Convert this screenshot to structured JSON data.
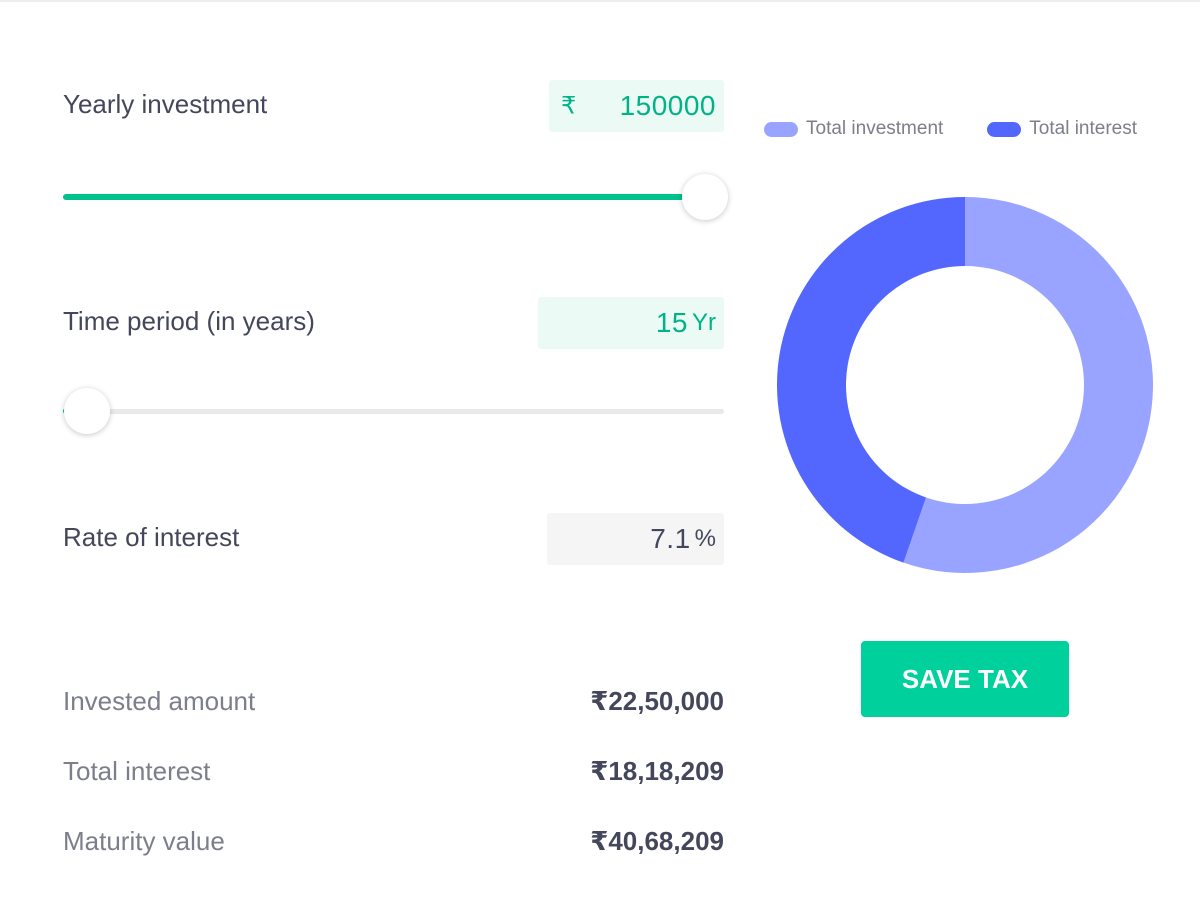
{
  "inputs": {
    "yearly_investment": {
      "label": "Yearly investment",
      "currency": "₹",
      "value": "150000",
      "slider_fraction": 0.972
    },
    "time_period": {
      "label": "Time period (in years)",
      "value": "15",
      "unit": "Yr",
      "slider_fraction": 0.036
    },
    "rate_of_interest": {
      "label": "Rate of interest",
      "value": "7.1",
      "unit": "%"
    }
  },
  "results": {
    "invested_amount": {
      "label": "Invested amount",
      "value": "₹22,50,000"
    },
    "total_interest": {
      "label": "Total interest",
      "value": "₹18,18,209"
    },
    "maturity_value": {
      "label": "Maturity value",
      "value": "₹40,68,209"
    }
  },
  "chart_data": {
    "type": "pie",
    "style": "donut",
    "legend_position": "top",
    "slices": [
      {
        "name": "Total investment",
        "value": 2250000,
        "color": "#98a4ff"
      },
      {
        "name": "Total interest",
        "value": 1818209,
        "color": "#5367ff"
      }
    ]
  },
  "colors": {
    "accent": "#00d09c",
    "slider_fill": "#00c28c",
    "input_text": "#00b386"
  },
  "button": {
    "label": "SAVE TAX"
  }
}
